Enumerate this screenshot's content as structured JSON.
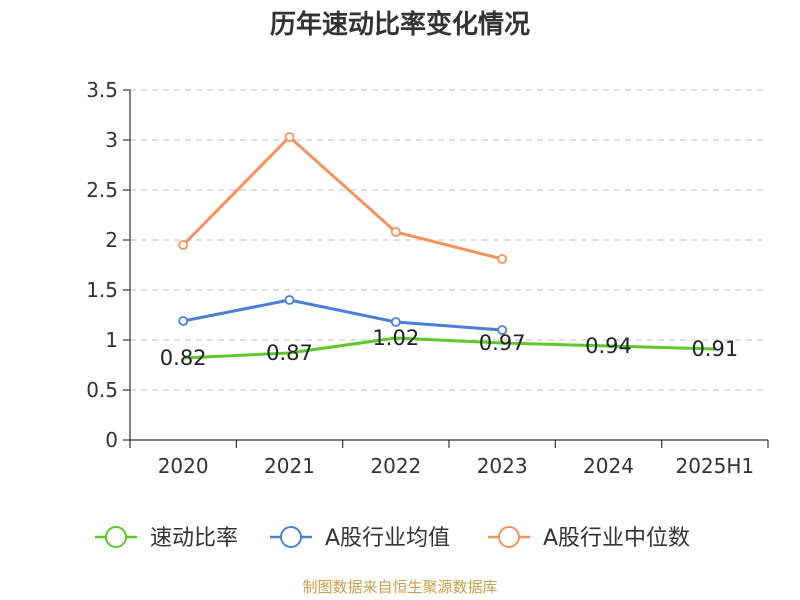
{
  "source_note": "制图数据来自恒生聚源数据库",
  "chart_data": {
    "type": "line",
    "title": "历年速动比率变化情况",
    "xlabel": "",
    "ylabel": "",
    "categories": [
      "2020",
      "2021",
      "2022",
      "2023",
      "2024",
      "2025H1"
    ],
    "ylim": [
      0,
      3.5
    ],
    "yticks": [
      0,
      0.5,
      1,
      1.5,
      2,
      2.5,
      3,
      3.5
    ],
    "ytick_labels": [
      "0",
      "0.5",
      "1",
      "1.5",
      "2",
      "2.5",
      "3",
      "3.5"
    ],
    "grid": true,
    "legend_position": "bottom",
    "series": [
      {
        "name": "速动比率",
        "color": "#5cc829",
        "values": [
          0.82,
          0.87,
          1.02,
          0.97,
          0.94,
          0.91
        ],
        "labels": [
          "0.82",
          "0.87",
          "1.02",
          "0.97",
          "0.94",
          "0.91"
        ],
        "markers": false
      },
      {
        "name": "A股行业均值",
        "color": "#4a7fd8",
        "values": [
          1.19,
          1.4,
          1.18,
          1.1,
          null,
          null
        ],
        "markers": true
      },
      {
        "name": "A股行业中位数",
        "color": "#f5925c",
        "values": [
          1.95,
          3.03,
          2.08,
          1.81,
          null,
          null
        ],
        "markers": true
      }
    ]
  }
}
